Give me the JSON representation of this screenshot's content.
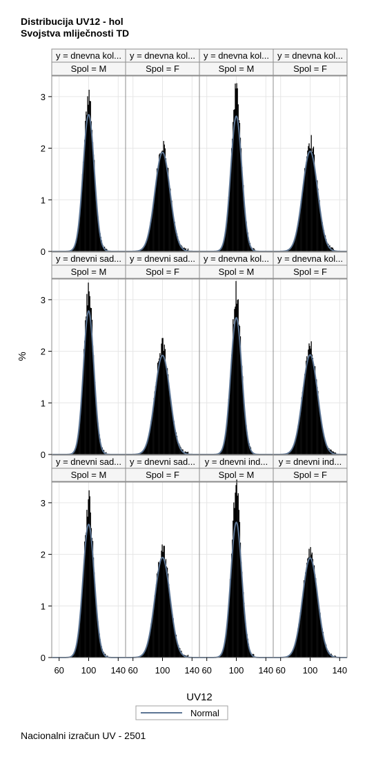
{
  "titles": [
    "Distribucija UV12 - hol",
    "Svojstva mliječnosti TD"
  ],
  "footnote": "Nacionalni izračun UV - 2501",
  "chart_data": {
    "type": "histogram-panel",
    "xlabel": "UV12",
    "ylabel": "%",
    "xticks": [
      60,
      100,
      140
    ],
    "xlim": [
      50,
      150
    ],
    "yticks": [
      0,
      1,
      2,
      3
    ],
    "ylim": [
      0,
      3.4
    ],
    "grid": true,
    "legend": {
      "position": "bottom-center",
      "entries": [
        {
          "name": "Normal",
          "color": "#5B7493"
        }
      ]
    },
    "colors": {
      "bars": "#000000",
      "curve": "#5B7493",
      "frame": "#8c8c8c",
      "grid": "#e6e6e6",
      "header_bg": "#f5f5f5"
    },
    "panels": [
      {
        "row": 0,
        "col": 0,
        "header1": "y = dnevna kol...",
        "header2": "Spol = M",
        "mean": 100,
        "sd": 7.5,
        "normal_peak": 2.65,
        "hist_peak": 3.05
      },
      {
        "row": 0,
        "col": 1,
        "header1": "y = dnevna kol...",
        "header2": "Spol = F",
        "mean": 100,
        "sd": 10.2,
        "normal_peak": 1.92,
        "hist_peak": 2.08
      },
      {
        "row": 0,
        "col": 2,
        "header1": "y = dnevna kol...",
        "header2": "Spol = M",
        "mean": 100,
        "sd": 7.5,
        "normal_peak": 2.62,
        "hist_peak": 3.2
      },
      {
        "row": 0,
        "col": 3,
        "header1": "y = dnevna kol...",
        "header2": "Spol = F",
        "mean": 100,
        "sd": 10.2,
        "normal_peak": 1.94,
        "hist_peak": 2.15
      },
      {
        "row": 1,
        "col": 0,
        "header1": "y = dnevni sad...",
        "header2": "Spol = M",
        "mean": 100,
        "sd": 7.1,
        "normal_peak": 2.78,
        "hist_peak": 3.2
      },
      {
        "row": 1,
        "col": 1,
        "header1": "y = dnevni sad...",
        "header2": "Spol = F",
        "mean": 100,
        "sd": 10.2,
        "normal_peak": 1.92,
        "hist_peak": 2.12
      },
      {
        "row": 1,
        "col": 2,
        "header1": "y = dnevna kol...",
        "header2": "Spol = M",
        "mean": 100,
        "sd": 7.5,
        "normal_peak": 2.65,
        "hist_peak": 3.18
      },
      {
        "row": 1,
        "col": 3,
        "header1": "y = dnevna kol...",
        "header2": "Spol = F",
        "mean": 100,
        "sd": 10.2,
        "normal_peak": 1.93,
        "hist_peak": 2.08
      },
      {
        "row": 2,
        "col": 0,
        "header1": "y = dnevni sad...",
        "header2": "Spol = M",
        "mean": 100,
        "sd": 7.6,
        "normal_peak": 2.58,
        "hist_peak": 3.05
      },
      {
        "row": 2,
        "col": 1,
        "header1": "y = dnevni sad...",
        "header2": "Spol = F",
        "mean": 100,
        "sd": 10.2,
        "normal_peak": 1.94,
        "hist_peak": 2.12
      },
      {
        "row": 2,
        "col": 2,
        "header1": "y = dnevni ind...",
        "header2": "Spol = M",
        "mean": 100,
        "sd": 7.5,
        "normal_peak": 2.62,
        "hist_peak": 3.35
      },
      {
        "row": 2,
        "col": 3,
        "header1": "y = dnevni ind...",
        "header2": "Spol = F",
        "mean": 100,
        "sd": 10.2,
        "normal_peak": 1.93,
        "hist_peak": 2.08
      }
    ]
  }
}
